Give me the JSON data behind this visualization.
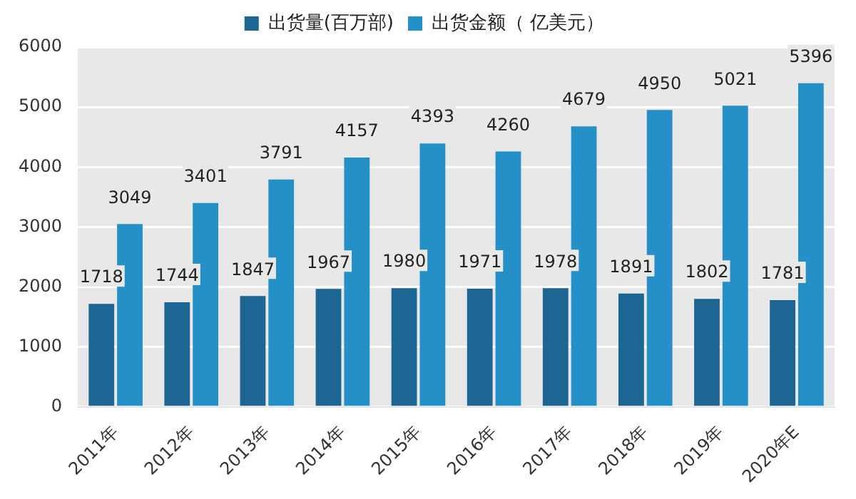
{
  "chart_data": {
    "type": "bar",
    "categories": [
      "2011年",
      "2012年",
      "2013年",
      "2014年",
      "2015年",
      "2016年",
      "2017年",
      "2018年",
      "2019年",
      "2020年E"
    ],
    "series": [
      {
        "name": "出货量(百万部)",
        "color": "#1d6592",
        "values": [
          1718,
          1744,
          1847,
          1967,
          1980,
          1971,
          1978,
          1891,
          1802,
          1781
        ]
      },
      {
        "name": "出货金额（ 亿美元）",
        "color": "#2590c8",
        "values": [
          3049,
          3401,
          3791,
          4157,
          4393,
          4260,
          4679,
          4950,
          5021,
          5396
        ]
      }
    ],
    "ylim": [
      0,
      6000
    ],
    "yticks": [
      0,
      1000,
      2000,
      3000,
      4000,
      5000,
      6000
    ],
    "grid": "y",
    "legend": "top",
    "data_labels": true
  }
}
